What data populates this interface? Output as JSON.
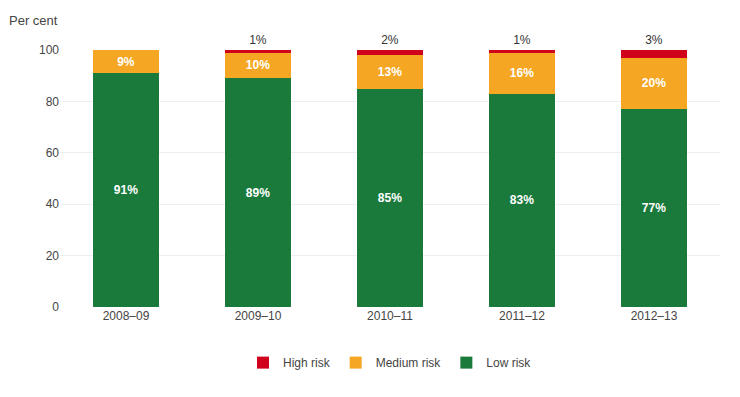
{
  "chart_data": {
    "type": "bar",
    "stacked": true,
    "ylabel": "Per cent",
    "categories": [
      "2008–09",
      "2009–10",
      "2010–11",
      "2011–12",
      "2012–13"
    ],
    "series": [
      {
        "name": "Low risk",
        "color": "#1a7a3c",
        "values": [
          91,
          89,
          85,
          83,
          77
        ],
        "value_labels": [
          "91%",
          "89%",
          "85%",
          "83%",
          "77%"
        ]
      },
      {
        "name": "Medium risk",
        "color": "#f5a623",
        "values": [
          9,
          10,
          13,
          16,
          20
        ],
        "value_labels": [
          "9%",
          "10%",
          "13%",
          "16%",
          "20%"
        ]
      },
      {
        "name": "High risk",
        "color": "#d0021b",
        "values": [
          0,
          1,
          2,
          1,
          3
        ],
        "value_labels": [
          null,
          "1%",
          "2%",
          "1%",
          "3%"
        ]
      }
    ],
    "ylim": [
      0,
      100
    ],
    "yticks": [
      0,
      20,
      40,
      60,
      80,
      100
    ],
    "grid": true,
    "legend": "bottom",
    "data_labels": true
  }
}
